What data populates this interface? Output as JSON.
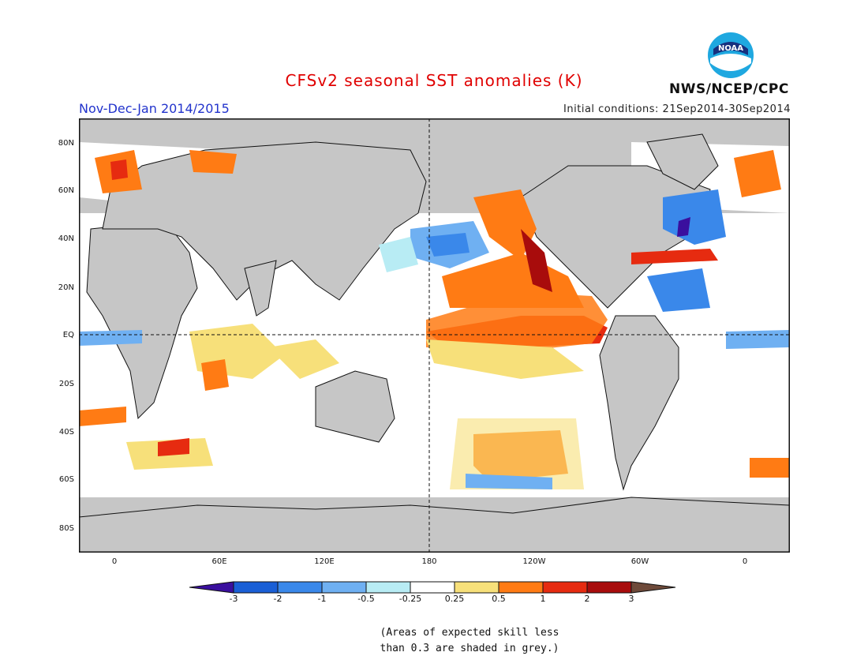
{
  "header": {
    "title": "CFSv2 seasonal SST anomalies (K)",
    "period": "Nov-Dec-Jan 2014/2015",
    "initial_conditions": "Initial conditions: 21Sep2014-30Sep2014",
    "agency": "NWS/NCEP/CPC",
    "logo_text": "NOAA"
  },
  "map": {
    "lat_labels": [
      "80N",
      "60N",
      "40N",
      "20N",
      "EQ",
      "20S",
      "40S",
      "60S",
      "80S"
    ],
    "lon_labels": [
      "0",
      "60E",
      "120E",
      "180",
      "120W",
      "60W",
      "0"
    ]
  },
  "colorbar": {
    "labels": [
      "-3",
      "-2",
      "-1",
      "-0.5",
      "-0.25",
      "0.25",
      "0.5",
      "1",
      "2",
      "3"
    ],
    "colors": [
      "#3a0f9e",
      "#1a5fd6",
      "#3a88ea",
      "#6fb0f2",
      "#b8ecf4",
      "#ffffff",
      "#f7e07a",
      "#ff7b14",
      "#e62b10",
      "#a80c0c",
      "#6e4a3a"
    ]
  },
  "footer": {
    "note_line1": "(Areas of expected skill less",
    "note_line2": "than 0.3 are shaded in grey.)"
  }
}
